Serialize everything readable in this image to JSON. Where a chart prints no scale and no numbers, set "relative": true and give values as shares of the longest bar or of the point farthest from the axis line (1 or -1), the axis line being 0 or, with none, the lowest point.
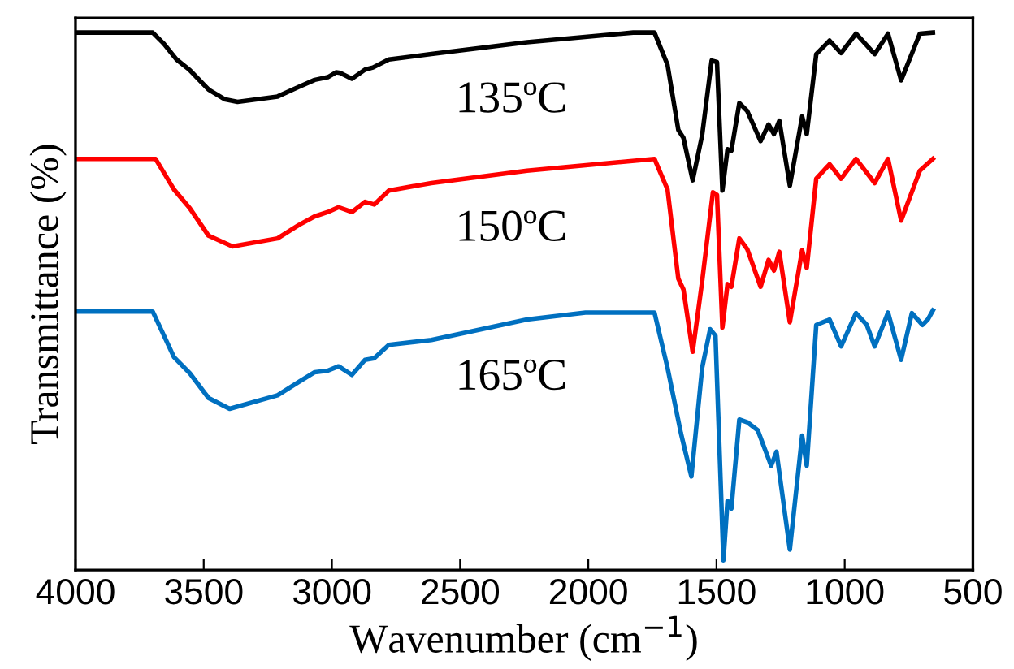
{
  "chart_data": {
    "type": "line",
    "relative": true,
    "xlabel": "Wavenumber (cm$^{−1}$)",
    "ylabel": "Transmittance (%)",
    "xlim": [
      4000,
      500
    ],
    "xticks": [
      4000,
      3500,
      3000,
      2500,
      2000,
      1500,
      1000,
      500
    ],
    "grid": false,
    "legend": false,
    "marker": "none",
    "line_style": "solid",
    "series": [
      {
        "name": "135ºC",
        "color": "#000000",
        "x": [
          4000,
          3699,
          3657,
          3606,
          3554,
          3481,
          3419,
          3368,
          3212,
          3129,
          3067,
          3016,
          2984,
          2968,
          2922,
          2871,
          2840,
          2778,
          2612,
          2239,
          1825,
          1742,
          1691,
          1649,
          1629,
          1593,
          1556,
          1519,
          1498,
          1477,
          1457,
          1442,
          1411,
          1380,
          1328,
          1297,
          1276,
          1255,
          1214,
          1166,
          1148,
          1111,
          1059,
          1014,
          956,
          883,
          831,
          780,
          707,
          656
        ],
        "values": [
          1.0,
          1.0,
          0.98,
          0.95,
          0.93,
          0.894,
          0.876,
          0.871,
          0.881,
          0.899,
          0.912,
          0.917,
          0.926,
          0.925,
          0.914,
          0.931,
          0.935,
          0.95,
          0.96,
          0.982,
          1.0,
          1.0,
          0.94,
          0.819,
          0.804,
          0.725,
          0.809,
          0.948,
          0.945,
          0.706,
          0.783,
          0.78,
          0.869,
          0.854,
          0.798,
          0.829,
          0.811,
          0.836,
          0.715,
          0.844,
          0.811,
          0.96,
          0.985,
          0.962,
          0.998,
          0.96,
          0.998,
          0.911,
          0.998,
          1.0
        ]
      },
      {
        "name": "150ºC",
        "color": "#ff0000",
        "x": [
          4000,
          3688,
          3616,
          3554,
          3481,
          3388,
          3212,
          3129,
          3067,
          3016,
          2974,
          2922,
          2871,
          2835,
          2778,
          2612,
          2239,
          1742,
          1691,
          1649,
          1629,
          1593,
          1556,
          1514,
          1498,
          1477,
          1457,
          1442,
          1411,
          1380,
          1328,
          1297,
          1276,
          1255,
          1214,
          1166,
          1148,
          1111,
          1059,
          1014,
          956,
          883,
          831,
          780,
          707,
          656
        ],
        "values": [
          0.765,
          0.765,
          0.708,
          0.673,
          0.622,
          0.602,
          0.617,
          0.642,
          0.658,
          0.666,
          0.675,
          0.666,
          0.685,
          0.68,
          0.706,
          0.72,
          0.743,
          0.765,
          0.708,
          0.542,
          0.522,
          0.406,
          0.537,
          0.703,
          0.698,
          0.451,
          0.532,
          0.527,
          0.617,
          0.597,
          0.527,
          0.577,
          0.557,
          0.592,
          0.461,
          0.595,
          0.562,
          0.728,
          0.755,
          0.728,
          0.765,
          0.72,
          0.765,
          0.65,
          0.743,
          0.765
        ]
      },
      {
        "name": "165ºC",
        "color": "#0070c0",
        "x": [
          4000,
          3699,
          3616,
          3554,
          3481,
          3399,
          3212,
          3129,
          3067,
          3016,
          2974,
          2922,
          2871,
          2835,
          2778,
          2612,
          2239,
          2011,
          1742,
          1691,
          1639,
          1629,
          1598,
          1556,
          1525,
          1504,
          1473,
          1457,
          1442,
          1411,
          1380,
          1339,
          1287,
          1266,
          1214,
          1166,
          1148,
          1111,
          1059,
          1014,
          956,
          914,
          883,
          831,
          780,
          738,
          697,
          676,
          656
        ],
        "values": [
          0.481,
          0.481,
          0.396,
          0.366,
          0.32,
          0.3,
          0.325,
          0.35,
          0.368,
          0.371,
          0.379,
          0.363,
          0.391,
          0.394,
          0.419,
          0.428,
          0.466,
          0.479,
          0.479,
          0.376,
          0.255,
          0.235,
          0.174,
          0.376,
          0.448,
          0.436,
          0.018,
          0.129,
          0.114,
          0.28,
          0.275,
          0.26,
          0.194,
          0.22,
          0.038,
          0.25,
          0.194,
          0.456,
          0.466,
          0.416,
          0.478,
          0.456,
          0.416,
          0.479,
          0.391,
          0.478,
          0.456,
          0.466,
          0.483
        ]
      }
    ]
  }
}
